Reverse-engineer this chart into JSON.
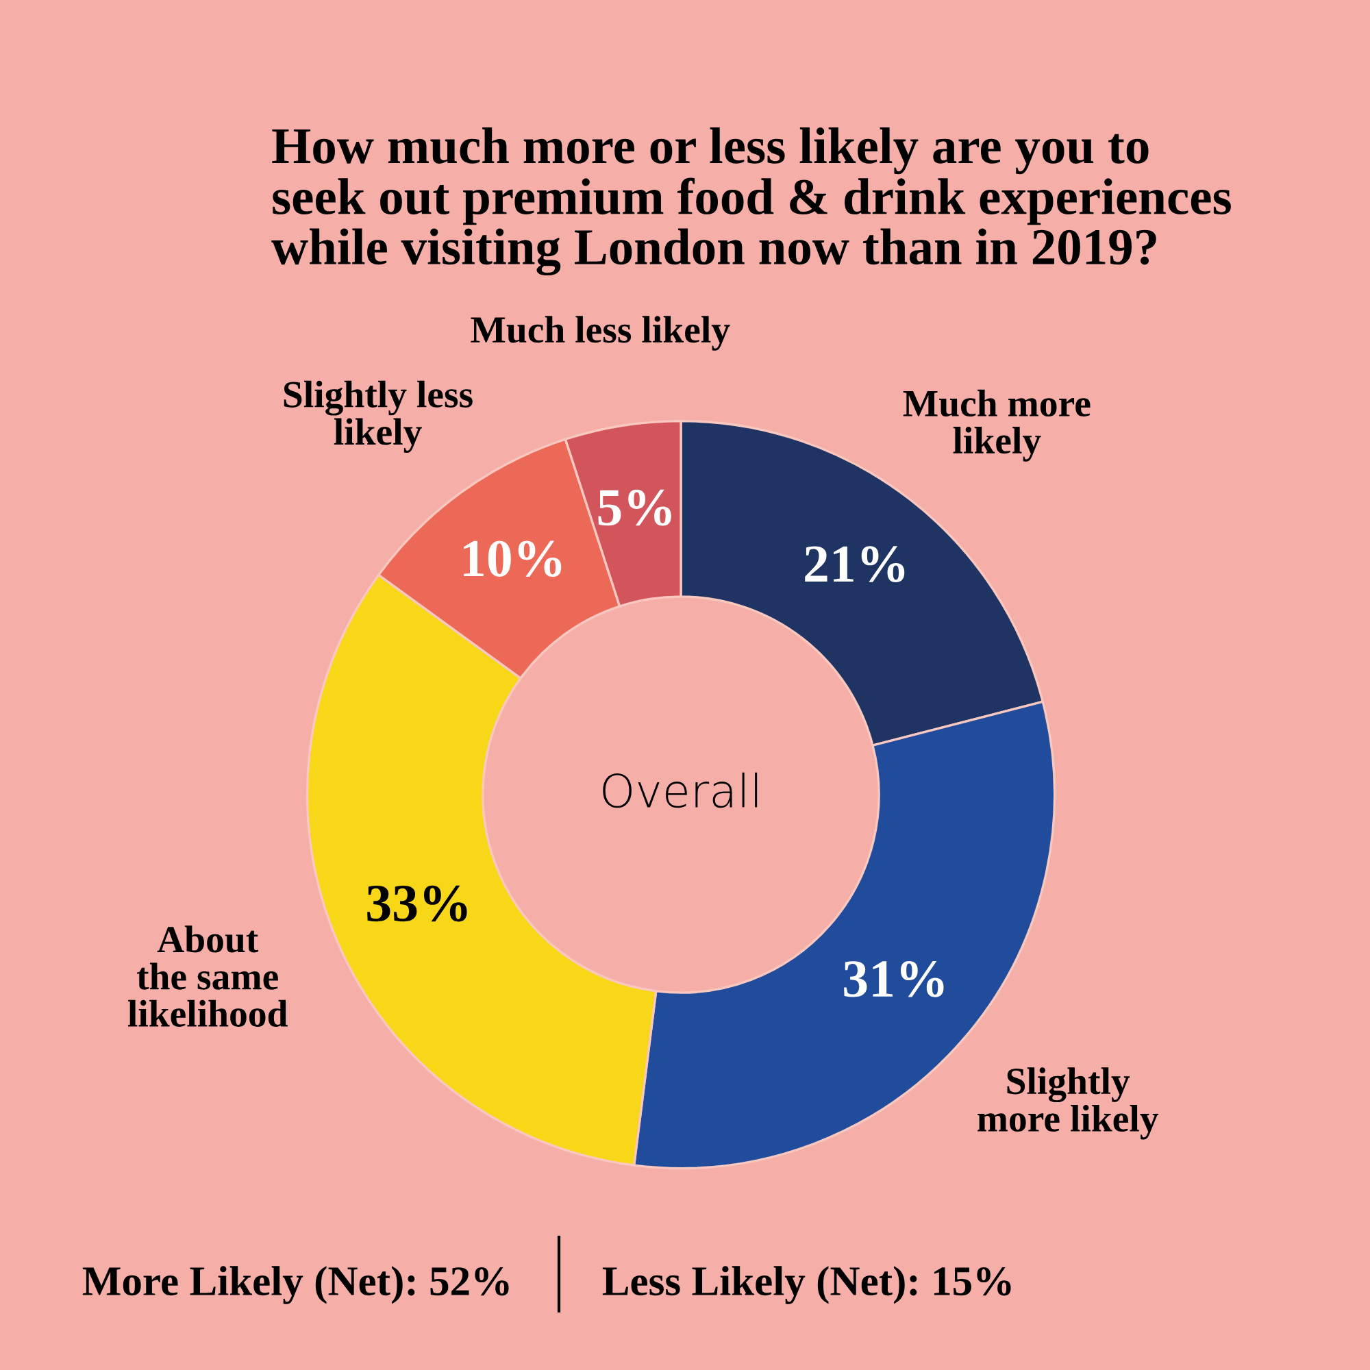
{
  "chart_data": {
    "type": "donut",
    "title": "How much more or less likely are you to\nseek out premium food & drink experiences\nwhile visiting London now than in 2019?",
    "subtitle": "Overall",
    "categories": [
      "Much more\nlikely",
      "Slightly\nmore likely",
      "About\nthe same\nlikelihood",
      "Slightly less\nlikely",
      "Much less likely"
    ],
    "values": [
      21,
      31,
      33,
      10,
      5
    ],
    "colors": [
      "#1f3462",
      "#214c9b",
      "#f8d719",
      "#ec6958",
      "#d3555c"
    ],
    "value_labels": [
      "21%",
      "31%",
      "33%",
      "10%",
      "5%"
    ],
    "annotations": [
      "More Likely (Net): 52%",
      "Less Likely (Net): 15%"
    ]
  }
}
